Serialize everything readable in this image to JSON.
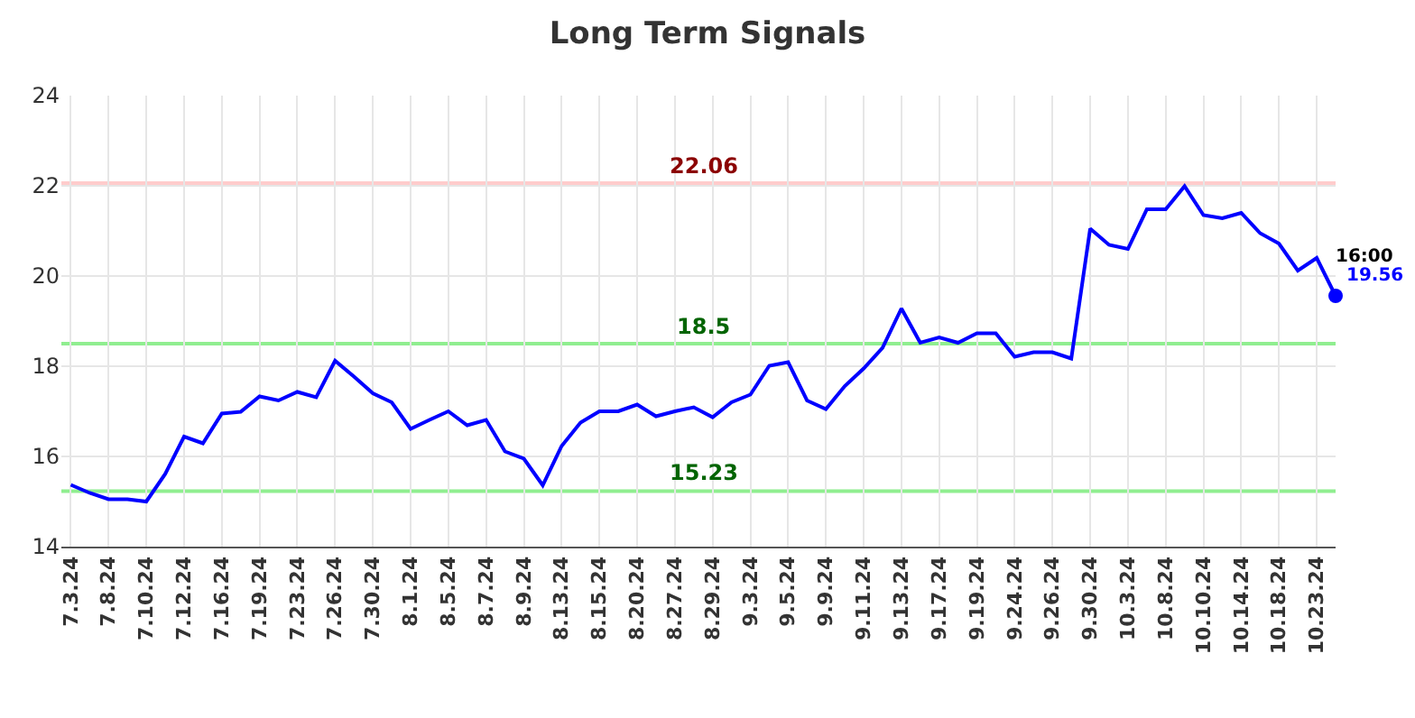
{
  "chart_data": {
    "type": "line",
    "title": "Long Term Signals",
    "categories": [
      "7.3.24",
      null,
      "7.8.24",
      null,
      "7.10.24",
      null,
      "7.12.24",
      null,
      "7.16.24",
      null,
      "7.19.24",
      null,
      "7.23.24",
      null,
      "7.26.24",
      null,
      "7.30.24",
      null,
      "8.1.24",
      null,
      "8.5.24",
      null,
      "8.7.24",
      null,
      "8.9.24",
      null,
      "8.13.24",
      null,
      "8.15.24",
      null,
      "8.20.24",
      null,
      "8.27.24",
      null,
      "8.29.24",
      null,
      "9.3.24",
      null,
      "9.5.24",
      null,
      "9.9.24",
      null,
      "9.11.24",
      null,
      "9.13.24",
      null,
      "9.17.24",
      null,
      "9.19.24",
      null,
      "9.24.24",
      null,
      "9.26.24",
      null,
      "9.30.24",
      null,
      "10.3.24",
      null,
      "10.8.24",
      null,
      "10.10.24",
      null,
      "10.14.24",
      null,
      "10.18.24",
      null,
      "10.23.24",
      null
    ],
    "series": [
      {
        "color": "#0000ff",
        "values": [
          15.37,
          15.19,
          15.05,
          15.05,
          15.0,
          15.61,
          16.44,
          16.29,
          16.95,
          16.99,
          17.33,
          17.24,
          17.43,
          17.31,
          18.12,
          17.77,
          17.4,
          17.2,
          16.61,
          16.81,
          17.0,
          16.69,
          16.81,
          16.11,
          15.95,
          15.36,
          16.23,
          16.75,
          17.0,
          17.0,
          17.15,
          16.89,
          17.0,
          17.09,
          16.87,
          17.2,
          17.37,
          18.01,
          18.09,
          17.24,
          17.05,
          17.56,
          17.95,
          18.41,
          19.28,
          18.52,
          18.64,
          18.52,
          18.73,
          18.73,
          18.21,
          18.31,
          18.31,
          18.17,
          21.05,
          20.69,
          20.6,
          21.48,
          21.48,
          21.99,
          21.35,
          21.28,
          21.4,
          20.95,
          20.72,
          20.12,
          20.4,
          19.56
        ],
        "value_labels": [
          null,
          null,
          null,
          null,
          null,
          null,
          null,
          null,
          null,
          null,
          null,
          null,
          null,
          null,
          null,
          null,
          null,
          null,
          null,
          null,
          null,
          null,
          null,
          null,
          null,
          null,
          null,
          null,
          null,
          null,
          null,
          null,
          null,
          null,
          null,
          null,
          null,
          null,
          null,
          null,
          null,
          null,
          null,
          null,
          null,
          null,
          null,
          null,
          null,
          null,
          null,
          null,
          null,
          null,
          null,
          null,
          null,
          null,
          null,
          null,
          null,
          null,
          null,
          null,
          null,
          null,
          null,
          "19.56"
        ]
      }
    ],
    "ylim": [
      14,
      24
    ],
    "yticks": [
      14,
      16,
      18,
      20,
      22,
      24
    ],
    "grid": true,
    "marker": "none",
    "line_style": "solid",
    "ref_lines": [
      {
        "axis": "y",
        "value": 22.06,
        "label": "22.06",
        "color": "#ffcccc"
      },
      {
        "axis": "y",
        "value": 18.5,
        "label": "18.5",
        "color": "#90ee90"
      },
      {
        "axis": "y",
        "value": 15.23,
        "label": "15.23",
        "color": "#90ee90"
      }
    ],
    "annotations": [
      "16:00"
    ]
  }
}
